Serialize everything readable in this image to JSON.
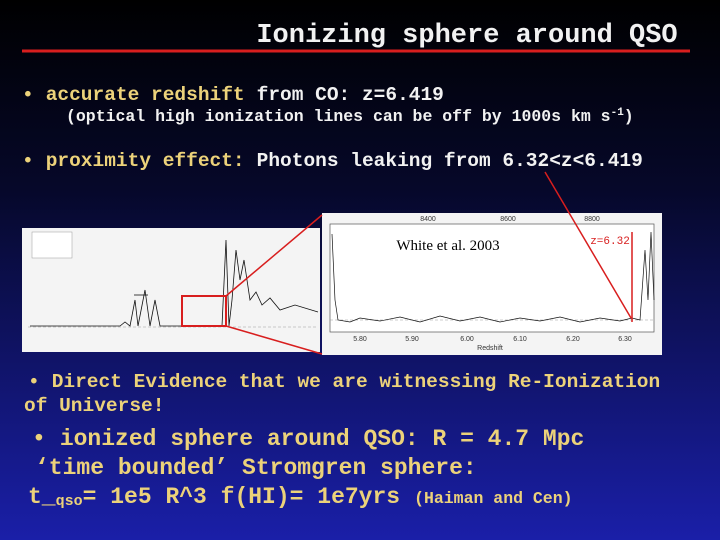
{
  "header": {
    "title": "Ionizing sphere around QSO"
  },
  "bullets": [
    {
      "highlight": "accurate redshift",
      "text": "from CO: z=6.419",
      "note": {
        "before": "(optical high ionization lines can be off by 1000s km s",
        "sup": "-1",
        "after": ")"
      }
    },
    {
      "highlight": "proximity effect:",
      "text": "Photons leaking from 6.32<z<6.419"
    },
    {
      "lines": [
        "Direct Evidence that we are witnessing Re-Ionization",
        "of Universe!"
      ]
    },
    {
      "lines": [
        "ionized sphere around QSO: R = 4.7 Mpc",
        "‘time bounded’ Stromgren sphere:"
      ],
      "formula": {
        "before": "t_",
        "sub": "qso",
        "after": "= 1e5 R^3 f(HI)= 1e7yrs",
        "citation": "(Haiman and Cen)"
      }
    }
  ],
  "figure": {
    "citation": "White et al. 2003",
    "marker": "z=6.32",
    "top_ticks": [
      "8400",
      "8600",
      "8800"
    ],
    "bottom_ticks": [
      "5.80",
      "5.90",
      "6.00",
      "6.10",
      "6.20",
      "6.30"
    ],
    "x_label": "Redshift"
  }
}
